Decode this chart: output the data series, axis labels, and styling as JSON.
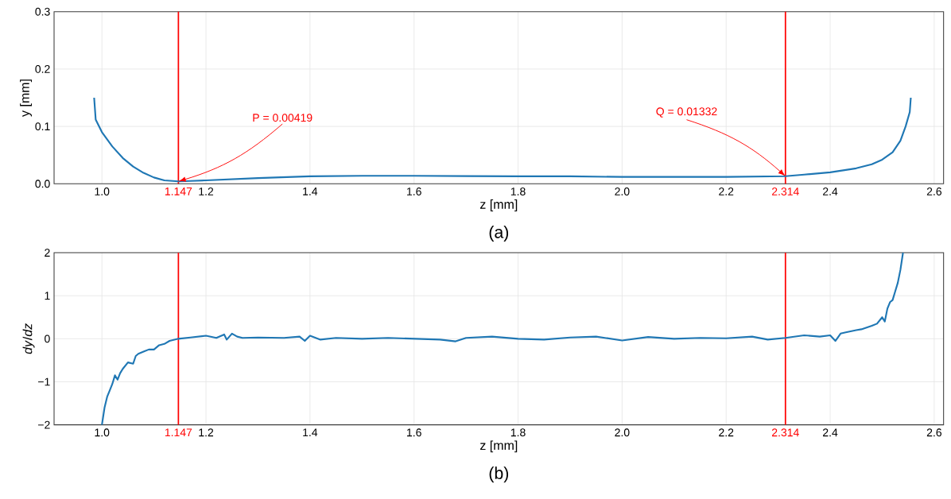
{
  "chart_data": [
    {
      "type": "line",
      "xlabel": "z [mm]",
      "ylabel": "y [mm]",
      "color": "#1f77b4",
      "x": [
        0.985,
        0.988,
        1.0,
        1.02,
        1.04,
        1.06,
        1.08,
        1.1,
        1.12,
        1.147,
        1.17,
        1.2,
        1.3,
        1.4,
        1.5,
        1.6,
        1.7,
        1.8,
        1.9,
        2.0,
        2.1,
        2.2,
        2.314,
        2.35,
        2.4,
        2.45,
        2.48,
        2.5,
        2.52,
        2.535,
        2.545,
        2.553,
        2.555
      ],
      "values": [
        0.15,
        0.112,
        0.09,
        0.065,
        0.045,
        0.03,
        0.019,
        0.011,
        0.006,
        0.0042,
        0.005,
        0.006,
        0.01,
        0.013,
        0.014,
        0.014,
        0.0135,
        0.013,
        0.013,
        0.012,
        0.012,
        0.012,
        0.0133,
        0.016,
        0.02,
        0.027,
        0.034,
        0.042,
        0.055,
        0.075,
        0.1,
        0.125,
        0.15
      ],
      "xlim": [
        0.908,
        2.618
      ],
      "ylim": [
        0,
        0.3
      ],
      "xticks": [
        {
          "value": 1.0,
          "label": "1.0"
        },
        {
          "value": 1.2,
          "label": "1.2"
        },
        {
          "value": 1.4,
          "label": "1.4"
        },
        {
          "value": 1.6,
          "label": "1.6"
        },
        {
          "value": 1.8,
          "label": "1.8"
        },
        {
          "value": 2.0,
          "label": "2.0"
        },
        {
          "value": 2.2,
          "label": "2.2"
        },
        {
          "value": 2.4,
          "label": "2.4"
        },
        {
          "value": 2.6,
          "label": "2.6"
        }
      ],
      "yticks": [
        {
          "value": 0.0,
          "label": "0.0"
        },
        {
          "value": 0.1,
          "label": "0.1"
        },
        {
          "value": 0.2,
          "label": "0.2"
        },
        {
          "value": 0.3,
          "label": "0.3"
        }
      ],
      "grid": true,
      "ref_lines": [
        {
          "axis": "x",
          "value": 1.147,
          "label": "1.147",
          "color": "#ff0000"
        },
        {
          "axis": "x",
          "value": 2.314,
          "label": "2.314",
          "color": "#ff0000"
        }
      ],
      "annotations": [
        {
          "text": "P = 0.00419",
          "x": 1.147,
          "y": 0.00419
        },
        {
          "text": "Q = 0.01332",
          "x": 2.314,
          "y": 0.01332
        },
        "(a)"
      ]
    },
    {
      "type": "line",
      "xlabel": "z [mm]",
      "ylabel": "*dy*/*dz*",
      "color": "#1f77b4",
      "x": [
        1.0,
        1.005,
        1.01,
        1.015,
        1.02,
        1.025,
        1.03,
        1.035,
        1.04,
        1.05,
        1.06,
        1.065,
        1.07,
        1.08,
        1.09,
        1.1,
        1.11,
        1.12,
        1.13,
        1.147,
        1.17,
        1.2,
        1.22,
        1.235,
        1.24,
        1.25,
        1.26,
        1.27,
        1.3,
        1.35,
        1.38,
        1.39,
        1.4,
        1.42,
        1.45,
        1.5,
        1.55,
        1.6,
        1.65,
        1.68,
        1.7,
        1.75,
        1.8,
        1.85,
        1.9,
        1.95,
        2.0,
        2.05,
        2.1,
        2.15,
        2.2,
        2.25,
        2.28,
        2.314,
        2.35,
        2.38,
        2.4,
        2.41,
        2.42,
        2.43,
        2.45,
        2.46,
        2.48,
        2.49,
        2.5,
        2.505,
        2.51,
        2.515,
        2.52,
        2.525,
        2.53,
        2.535,
        2.54
      ],
      "values": [
        -2.0,
        -1.6,
        -1.35,
        -1.2,
        -1.05,
        -0.85,
        -0.95,
        -0.8,
        -0.7,
        -0.55,
        -0.58,
        -0.4,
        -0.35,
        -0.3,
        -0.25,
        -0.25,
        -0.15,
        -0.12,
        -0.05,
        0.0,
        0.03,
        0.07,
        0.02,
        0.1,
        -0.02,
        0.12,
        0.05,
        0.02,
        0.03,
        0.02,
        0.05,
        -0.05,
        0.07,
        -0.02,
        0.02,
        0.0,
        0.02,
        0.0,
        -0.02,
        -0.06,
        0.02,
        0.05,
        0.0,
        -0.02,
        0.03,
        0.05,
        -0.04,
        0.04,
        0.0,
        0.02,
        0.01,
        0.05,
        -0.02,
        0.02,
        0.08,
        0.05,
        0.08,
        -0.05,
        0.12,
        0.15,
        0.2,
        0.22,
        0.3,
        0.35,
        0.5,
        0.4,
        0.7,
        0.85,
        0.9,
        1.1,
        1.3,
        1.6,
        2.0
      ],
      "xlim": [
        0.908,
        2.618
      ],
      "ylim": [
        -2,
        2
      ],
      "xticks": [
        {
          "value": 1.0,
          "label": "1.0"
        },
        {
          "value": 1.2,
          "label": "1.2"
        },
        {
          "value": 1.4,
          "label": "1.4"
        },
        {
          "value": 1.6,
          "label": "1.6"
        },
        {
          "value": 1.8,
          "label": "1.8"
        },
        {
          "value": 2.0,
          "label": "2.0"
        },
        {
          "value": 2.2,
          "label": "2.2"
        },
        {
          "value": 2.4,
          "label": "2.4"
        },
        {
          "value": 2.6,
          "label": "2.6"
        }
      ],
      "yticks": [
        {
          "value": -2,
          "label": "−2"
        },
        {
          "value": -1,
          "label": "−1"
        },
        {
          "value": 0,
          "label": "0"
        },
        {
          "value": 1,
          "label": "1"
        },
        {
          "value": 2,
          "label": "2"
        }
      ],
      "grid": true,
      "ref_lines": [
        {
          "axis": "x",
          "value": 1.147,
          "label": "1.147",
          "color": "#ff0000"
        },
        {
          "axis": "x",
          "value": 2.314,
          "label": "2.314",
          "color": "#ff0000"
        }
      ],
      "annotations": [
        "(b)"
      ]
    }
  ]
}
